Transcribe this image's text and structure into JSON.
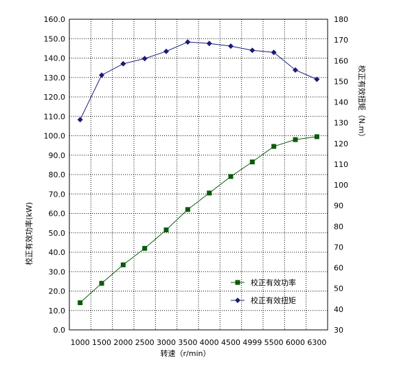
{
  "chart_data": {
    "type": "line",
    "x_label": "转速（r/min）",
    "y_left_label": "校正有效功率(kW)",
    "y_right_label": "校正有效扭矩（N.m）",
    "x_ticks": [
      "1000",
      "1500",
      "2000",
      "2500",
      "3000",
      "3500",
      "4000",
      "4500",
      "4999",
      "5500",
      "6000",
      "6300"
    ],
    "y_left_ticks": [
      "0.0",
      "10.0",
      "20.0",
      "30.0",
      "40.0",
      "50.0",
      "60.0",
      "70.0",
      "80.0",
      "90.0",
      "100.0",
      "110.0",
      "120.0",
      "130.0",
      "140.0",
      "150.0",
      "160.0"
    ],
    "y_right_ticks": [
      "30",
      "40",
      "50",
      "60",
      "70",
      "80",
      "90",
      "100",
      "110",
      "120",
      "130",
      "140",
      "150",
      "160",
      "170",
      "180"
    ],
    "y_left_range": [
      0,
      160
    ],
    "y_right_range": [
      30,
      180
    ],
    "grid": true,
    "legend_position": "bottom-right",
    "series": [
      {
        "name": "校正有效功率",
        "axis": "left",
        "marker": "square",
        "color": "#0b5a0b",
        "values": [
          14.0,
          24.0,
          33.5,
          42.0,
          51.5,
          62.0,
          70.5,
          79.0,
          86.5,
          94.5,
          98.0,
          99.5
        ]
      },
      {
        "name": "校正有效扭矩",
        "axis": "right",
        "marker": "diamond",
        "color": "#1a1a7a",
        "values": [
          131.5,
          153.0,
          158.5,
          161.0,
          164.5,
          169.0,
          168.3,
          167.0,
          165.0,
          164.0,
          155.5,
          151.0
        ]
      }
    ]
  }
}
